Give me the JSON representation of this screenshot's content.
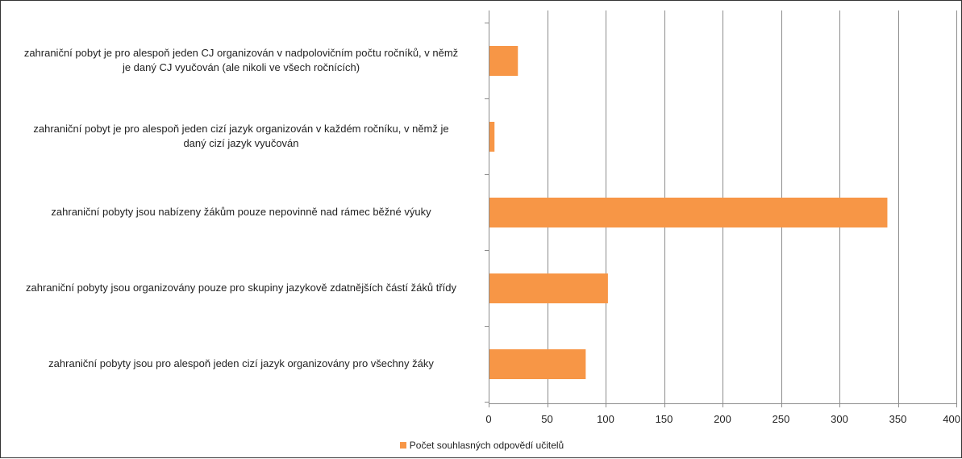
{
  "chart_data": {
    "type": "bar",
    "orientation": "horizontal",
    "categories": [
      "zahraniční pobyt je pro alespoň jeden CJ organizován v nadpolovičním počtu ročníků, v němž je daný CJ vyučován (ale nikoli ve všech ročnících)",
      "zahraniční pobyt je pro alespoň jeden cizí jazyk organizován v každém ročníku, v němž je daný cizí jazyk vyučován",
      "zahraniční pobyty jsou nabízeny žákům pouze nepovinně nad rámec běžné výuky",
      "zahraniční pobyty jsou organizovány pouze pro skupiny jazykově zdatnějších částí žáků třídy",
      "zahraniční pobyty jsou pro alespoň jeden cizí jazyk organizovány pro všechny žáky"
    ],
    "category_lines": [
      [
        "zahraniční pobyt je pro alespoň jeden CJ organizován v nadpolovičním počtu ročníků, v němž",
        "je daný CJ vyučován (ale nikoli ve všech ročnících)"
      ],
      [
        "zahraniční pobyt je pro alespoň jeden cizí jazyk organizován v každém ročníku, v němž je",
        "daný cizí jazyk vyučován"
      ],
      [
        "zahraniční pobyty jsou nabízeny žákům pouze nepovinně nad rámec běžné výuky"
      ],
      [
        "zahraniční pobyty jsou organizovány pouze pro skupiny jazykově zdatnějších částí žáků třídy"
      ],
      [
        "zahraniční pobyty jsou pro alespoň jeden cizí jazyk organizovány pro všechny žáky"
      ]
    ],
    "series": [
      {
        "name": "Počet souhlasných odpovědí učitelů",
        "values": [
          25,
          5,
          341,
          102,
          83
        ]
      }
    ],
    "xlim": [
      0,
      400
    ],
    "xticks": [
      "0",
      "50",
      "100",
      "150",
      "200",
      "250",
      "300",
      "350",
      "400"
    ],
    "grid": "vertical",
    "legend_position": "bottom",
    "bar_color": "#F79646",
    "gridline_color": "#8C8C8C"
  }
}
